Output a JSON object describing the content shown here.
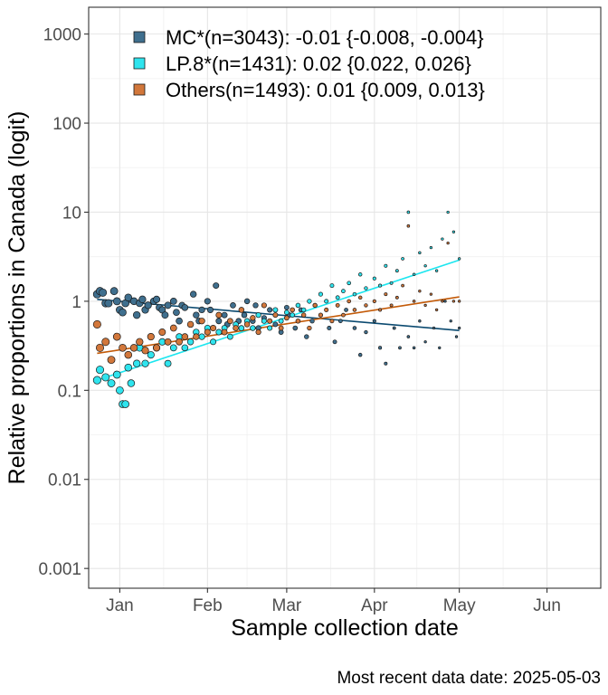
{
  "chart_data": {
    "type": "scatter",
    "title": "",
    "xlabel": "Sample collection date",
    "ylabel": "Relative proportions in Canada (logit)",
    "caption": "Most recent data date: 2025-05-03",
    "y_scale": "log",
    "ylim": [
      0.0006,
      2000
    ],
    "xlim": [
      "2024-12-21",
      "2025-06-20"
    ],
    "x_ticks": [
      {
        "date": "2025-01-01",
        "label": "Jan"
      },
      {
        "date": "2025-02-01",
        "label": "Feb"
      },
      {
        "date": "2025-03-01",
        "label": "Mar"
      },
      {
        "date": "2025-04-01",
        "label": "Apr"
      },
      {
        "date": "2025-05-01",
        "label": "May"
      },
      {
        "date": "2025-06-01",
        "label": "Jun"
      }
    ],
    "y_ticks": [
      {
        "value": 0.001,
        "label": "0.001"
      },
      {
        "value": 0.01,
        "label": "0.01"
      },
      {
        "value": 0.1,
        "label": "0.1"
      },
      {
        "value": 1,
        "label": "1"
      },
      {
        "value": 10,
        "label": "10"
      },
      {
        "value": 100,
        "label": "100"
      },
      {
        "value": 1000,
        "label": "1000"
      }
    ],
    "grid": true,
    "legend_position": "top-left",
    "series": [
      {
        "name": "MC*(n=3043): -0.01 {-0.008, -0.004}",
        "color": "#3f6f8e",
        "line_color": "#0b4a70",
        "trend": [
          [
            "2024-12-24",
            1.05
          ],
          [
            "2025-05-01",
            0.47
          ]
        ],
        "points": [
          [
            "2024-12-24",
            1.2
          ],
          [
            "2024-12-25",
            1.3
          ],
          [
            "2024-12-26",
            1.25
          ],
          [
            "2024-12-27",
            0.95
          ],
          [
            "2024-12-28",
            0.95
          ],
          [
            "2024-12-30",
            1.3
          ],
          [
            "2024-12-31",
            1.0
          ],
          [
            "2025-01-01",
            0.8
          ],
          [
            "2025-01-02",
            0.75
          ],
          [
            "2025-01-03",
            0.95
          ],
          [
            "2025-01-04",
            1.1
          ],
          [
            "2025-01-06",
            1.0
          ],
          [
            "2025-01-07",
            0.7
          ],
          [
            "2025-01-08",
            0.95
          ],
          [
            "2025-01-09",
            1.05
          ],
          [
            "2025-01-10",
            0.8
          ],
          [
            "2025-01-11",
            0.9
          ],
          [
            "2025-01-13",
            1.0
          ],
          [
            "2025-01-14",
            1.05
          ],
          [
            "2025-01-15",
            0.85
          ],
          [
            "2025-01-16",
            0.8
          ],
          [
            "2025-01-17",
            0.7
          ],
          [
            "2025-01-18",
            0.9
          ],
          [
            "2025-01-20",
            1.0
          ],
          [
            "2025-01-21",
            0.75
          ],
          [
            "2025-01-22",
            0.6
          ],
          [
            "2025-01-23",
            0.9
          ],
          [
            "2025-01-24",
            0.85
          ],
          [
            "2025-01-27",
            1.2
          ],
          [
            "2025-01-28",
            0.7
          ],
          [
            "2025-01-29",
            0.6
          ],
          [
            "2025-01-30",
            0.8
          ],
          [
            "2025-02-01",
            1.0
          ],
          [
            "2025-02-02",
            0.8
          ],
          [
            "2025-02-04",
            1.5
          ],
          [
            "2025-02-05",
            0.6
          ],
          [
            "2025-02-07",
            0.7
          ],
          [
            "2025-02-08",
            0.55
          ],
          [
            "2025-02-10",
            0.9
          ],
          [
            "2025-02-12",
            0.6
          ],
          [
            "2025-02-14",
            0.7
          ],
          [
            "2025-02-15",
            1.0
          ],
          [
            "2025-02-17",
            0.6
          ],
          [
            "2025-02-18",
            0.9
          ],
          [
            "2025-02-19",
            0.5
          ],
          [
            "2025-02-21",
            0.65
          ],
          [
            "2025-02-23",
            0.8
          ],
          [
            "2025-02-25",
            0.55
          ],
          [
            "2025-02-27",
            0.45
          ],
          [
            "2025-03-01",
            0.85
          ],
          [
            "2025-03-02",
            0.7
          ],
          [
            "2025-03-04",
            0.5
          ],
          [
            "2025-03-06",
            0.8
          ],
          [
            "2025-03-08",
            0.4
          ],
          [
            "2025-03-10",
            0.6
          ],
          [
            "2025-03-13",
            0.7
          ],
          [
            "2025-03-16",
            0.5
          ],
          [
            "2025-03-18",
            0.35
          ],
          [
            "2025-03-20",
            0.6
          ],
          [
            "2025-03-22",
            0.8
          ],
          [
            "2025-03-25",
            0.5
          ],
          [
            "2025-03-27",
            0.25
          ],
          [
            "2025-03-29",
            0.45
          ],
          [
            "2025-04-01",
            0.6
          ],
          [
            "2025-04-03",
            0.3
          ],
          [
            "2025-04-05",
            0.2
          ],
          [
            "2025-04-08",
            0.5
          ],
          [
            "2025-04-10",
            0.3
          ],
          [
            "2025-04-13",
            0.4
          ],
          [
            "2025-04-15",
            0.3
          ],
          [
            "2025-04-17",
            0.6
          ],
          [
            "2025-04-19",
            0.35
          ],
          [
            "2025-04-22",
            0.5
          ],
          [
            "2025-04-24",
            0.3
          ],
          [
            "2025-04-26",
            1.0
          ],
          [
            "2025-04-28",
            0.6
          ],
          [
            "2025-04-30",
            0.4
          ],
          [
            "2025-05-01",
            0.5
          ]
        ]
      },
      {
        "name": "LP.8*(n=1431): 0.02 {0.022, 0.026}",
        "color": "#2fe4ee",
        "line_color": "#1ce6ef",
        "trend": [
          [
            "2024-12-24",
            0.13
          ],
          [
            "2025-05-01",
            2.9
          ]
        ],
        "points": [
          [
            "2024-12-24",
            0.13
          ],
          [
            "2024-12-25",
            0.17
          ],
          [
            "2024-12-27",
            0.14
          ],
          [
            "2024-12-29",
            0.12
          ],
          [
            "2024-12-31",
            0.15
          ],
          [
            "2025-01-01",
            0.1
          ],
          [
            "2025-01-02",
            0.07
          ],
          [
            "2025-01-03",
            0.07
          ],
          [
            "2025-01-04",
            0.18
          ],
          [
            "2025-01-05",
            0.12
          ],
          [
            "2025-01-07",
            0.2
          ],
          [
            "2025-01-08",
            0.3
          ],
          [
            "2025-01-10",
            0.2
          ],
          [
            "2025-01-12",
            0.25
          ],
          [
            "2025-01-14",
            0.3
          ],
          [
            "2025-01-16",
            0.35
          ],
          [
            "2025-01-18",
            0.2
          ],
          [
            "2025-01-20",
            0.3
          ],
          [
            "2025-01-22",
            0.4
          ],
          [
            "2025-01-24",
            0.3
          ],
          [
            "2025-01-26",
            0.35
          ],
          [
            "2025-01-28",
            0.45
          ],
          [
            "2025-01-30",
            0.4
          ],
          [
            "2025-02-01",
            0.5
          ],
          [
            "2025-02-03",
            0.35
          ],
          [
            "2025-02-05",
            0.45
          ],
          [
            "2025-02-07",
            0.5
          ],
          [
            "2025-02-09",
            0.4
          ],
          [
            "2025-02-11",
            0.55
          ],
          [
            "2025-02-13",
            0.5
          ],
          [
            "2025-02-15",
            0.6
          ],
          [
            "2025-02-17",
            0.5
          ],
          [
            "2025-02-19",
            0.7
          ],
          [
            "2025-02-21",
            0.6
          ],
          [
            "2025-02-23",
            0.5
          ],
          [
            "2025-02-25",
            0.8
          ],
          [
            "2025-02-27",
            0.6
          ],
          [
            "2025-03-01",
            0.75
          ],
          [
            "2025-03-03",
            0.7
          ],
          [
            "2025-03-05",
            0.9
          ],
          [
            "2025-03-07",
            0.8
          ],
          [
            "2025-03-09",
            1.0
          ],
          [
            "2025-03-11",
            0.9
          ],
          [
            "2025-03-13",
            1.2
          ],
          [
            "2025-03-15",
            1.0
          ],
          [
            "2025-03-17",
            1.5
          ],
          [
            "2025-03-19",
            1.1
          ],
          [
            "2025-03-21",
            1.3
          ],
          [
            "2025-03-23",
            1.6
          ],
          [
            "2025-03-25",
            1.2
          ],
          [
            "2025-03-27",
            2.0
          ],
          [
            "2025-03-29",
            1.4
          ],
          [
            "2025-04-01",
            1.8
          ],
          [
            "2025-04-03",
            1.5
          ],
          [
            "2025-04-05",
            2.5
          ],
          [
            "2025-04-07",
            1.6
          ],
          [
            "2025-04-09",
            2.2
          ],
          [
            "2025-04-11",
            3.0
          ],
          [
            "2025-04-13",
            10.0
          ],
          [
            "2025-04-15",
            2.0
          ],
          [
            "2025-04-17",
            3.5
          ],
          [
            "2025-04-19",
            2.5
          ],
          [
            "2025-04-21",
            4.0
          ],
          [
            "2025-04-23",
            2.2
          ],
          [
            "2025-04-25",
            5.0
          ],
          [
            "2025-04-27",
            10.0
          ],
          [
            "2025-04-29",
            6.0
          ],
          [
            "2025-05-01",
            3.0
          ]
        ]
      },
      {
        "name": "Others(n=1493): 0.01 {0.009, 0.013}",
        "color": "#d2773b",
        "line_color": "#c35a08",
        "trend": [
          [
            "2024-12-24",
            0.26
          ],
          [
            "2025-05-01",
            1.12
          ]
        ],
        "points": [
          [
            "2024-12-24",
            0.55
          ],
          [
            "2024-12-25",
            0.3
          ],
          [
            "2024-12-27",
            0.35
          ],
          [
            "2024-12-29",
            0.22
          ],
          [
            "2024-12-31",
            0.4
          ],
          [
            "2025-01-02",
            0.3
          ],
          [
            "2025-01-04",
            0.25
          ],
          [
            "2025-01-06",
            0.3
          ],
          [
            "2025-01-08",
            0.35
          ],
          [
            "2025-01-10",
            0.28
          ],
          [
            "2025-01-12",
            0.4
          ],
          [
            "2025-01-14",
            0.3
          ],
          [
            "2025-01-16",
            0.45
          ],
          [
            "2025-01-18",
            0.35
          ],
          [
            "2025-01-20",
            0.5
          ],
          [
            "2025-01-22",
            0.35
          ],
          [
            "2025-01-24",
            0.4
          ],
          [
            "2025-01-26",
            0.55
          ],
          [
            "2025-01-28",
            0.4
          ],
          [
            "2025-01-30",
            0.6
          ],
          [
            "2025-02-01",
            0.45
          ],
          [
            "2025-02-03",
            0.5
          ],
          [
            "2025-02-05",
            0.7
          ],
          [
            "2025-02-07",
            0.45
          ],
          [
            "2025-02-09",
            0.6
          ],
          [
            "2025-02-11",
            0.5
          ],
          [
            "2025-02-13",
            0.8
          ],
          [
            "2025-02-15",
            0.55
          ],
          [
            "2025-02-17",
            0.65
          ],
          [
            "2025-02-19",
            0.45
          ],
          [
            "2025-02-21",
            0.9
          ],
          [
            "2025-02-23",
            0.6
          ],
          [
            "2025-02-25",
            0.7
          ],
          [
            "2025-02-27",
            0.5
          ],
          [
            "2025-03-01",
            0.65
          ],
          [
            "2025-03-03",
            0.8
          ],
          [
            "2025-03-05",
            0.6
          ],
          [
            "2025-03-07",
            0.7
          ],
          [
            "2025-03-09",
            0.5
          ],
          [
            "2025-03-11",
            0.9
          ],
          [
            "2025-03-13",
            0.7
          ],
          [
            "2025-03-15",
            0.8
          ],
          [
            "2025-03-17",
            0.6
          ],
          [
            "2025-03-19",
            0.9
          ],
          [
            "2025-03-21",
            0.7
          ],
          [
            "2025-03-23",
            1.0
          ],
          [
            "2025-03-25",
            0.8
          ],
          [
            "2025-03-27",
            1.1
          ],
          [
            "2025-03-29",
            0.9
          ],
          [
            "2025-04-01",
            1.0
          ],
          [
            "2025-04-03",
            0.8
          ],
          [
            "2025-04-05",
            1.2
          ],
          [
            "2025-04-07",
            0.9
          ],
          [
            "2025-04-09",
            1.1
          ],
          [
            "2025-04-11",
            1.5
          ],
          [
            "2025-04-13",
            7.0
          ],
          [
            "2025-04-15",
            1.0
          ],
          [
            "2025-04-17",
            1.3
          ],
          [
            "2025-04-19",
            0.9
          ],
          [
            "2025-04-21",
            1.2
          ],
          [
            "2025-04-23",
            0.8
          ],
          [
            "2025-04-25",
            1.0
          ],
          [
            "2025-04-27",
            4.5
          ],
          [
            "2025-04-29",
            1.0
          ],
          [
            "2025-05-01",
            1.0
          ]
        ]
      }
    ]
  }
}
